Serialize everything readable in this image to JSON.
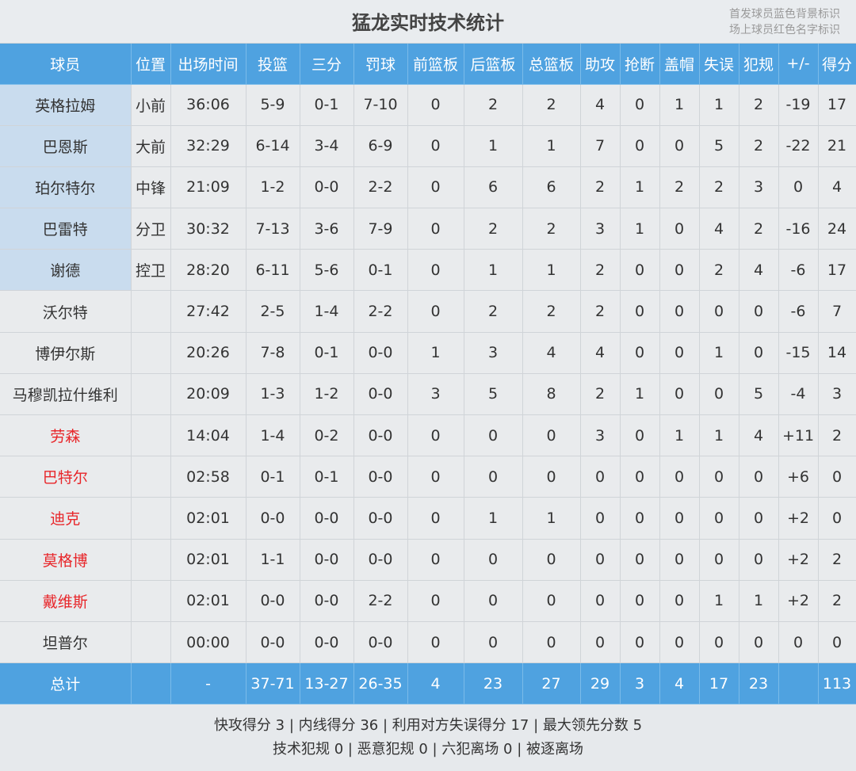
{
  "title": "猛龙实时技术统计",
  "legend": [
    "首发球员蓝色背景标识",
    "场上球员红色名字标识"
  ],
  "colors": {
    "header": "#4fa2e0",
    "starter_bg": "#c9dcee",
    "on_court_text": "#e8262a"
  },
  "columns": [
    "球员",
    "位置",
    "出场时间",
    "投篮",
    "三分",
    "罚球",
    "前篮板",
    "后篮板",
    "总篮板",
    "助攻",
    "抢断",
    "盖帽",
    "失误",
    "犯规",
    "+/-",
    "得分"
  ],
  "rows": [
    {
      "starter": true,
      "on_court": false,
      "cells": [
        "英格拉姆",
        "小前",
        "36:06",
        "5-9",
        "0-1",
        "7-10",
        "0",
        "2",
        "2",
        "4",
        "0",
        "1",
        "1",
        "2",
        "-19",
        "17"
      ]
    },
    {
      "starter": true,
      "on_court": false,
      "cells": [
        "巴恩斯",
        "大前",
        "32:29",
        "6-14",
        "3-4",
        "6-9",
        "0",
        "1",
        "1",
        "7",
        "0",
        "0",
        "5",
        "2",
        "-22",
        "21"
      ]
    },
    {
      "starter": true,
      "on_court": false,
      "cells": [
        "珀尔特尔",
        "中锋",
        "21:09",
        "1-2",
        "0-0",
        "2-2",
        "0",
        "6",
        "6",
        "2",
        "1",
        "2",
        "2",
        "3",
        "0",
        "4"
      ]
    },
    {
      "starter": true,
      "on_court": false,
      "cells": [
        "巴雷特",
        "分卫",
        "30:32",
        "7-13",
        "3-6",
        "7-9",
        "0",
        "2",
        "2",
        "3",
        "1",
        "0",
        "4",
        "2",
        "-16",
        "24"
      ]
    },
    {
      "starter": true,
      "on_court": false,
      "cells": [
        "谢德",
        "控卫",
        "28:20",
        "6-11",
        "5-6",
        "0-1",
        "0",
        "1",
        "1",
        "2",
        "0",
        "0",
        "2",
        "4",
        "-6",
        "17"
      ]
    },
    {
      "starter": false,
      "on_court": false,
      "cells": [
        "沃尔特",
        "",
        "27:42",
        "2-5",
        "1-4",
        "2-2",
        "0",
        "2",
        "2",
        "2",
        "0",
        "0",
        "0",
        "0",
        "-6",
        "7"
      ]
    },
    {
      "starter": false,
      "on_court": false,
      "cells": [
        "博伊尔斯",
        "",
        "20:26",
        "7-8",
        "0-1",
        "0-0",
        "1",
        "3",
        "4",
        "4",
        "0",
        "0",
        "1",
        "0",
        "-15",
        "14"
      ]
    },
    {
      "starter": false,
      "on_court": false,
      "cells": [
        "马穆凯拉什维利",
        "",
        "20:09",
        "1-3",
        "1-2",
        "0-0",
        "3",
        "5",
        "8",
        "2",
        "1",
        "0",
        "0",
        "5",
        "-4",
        "3"
      ]
    },
    {
      "starter": false,
      "on_court": true,
      "cells": [
        "劳森",
        "",
        "14:04",
        "1-4",
        "0-2",
        "0-0",
        "0",
        "0",
        "0",
        "3",
        "0",
        "1",
        "1",
        "4",
        "+11",
        "2"
      ]
    },
    {
      "starter": false,
      "on_court": true,
      "cells": [
        "巴特尔",
        "",
        "02:58",
        "0-1",
        "0-1",
        "0-0",
        "0",
        "0",
        "0",
        "0",
        "0",
        "0",
        "0",
        "0",
        "+6",
        "0"
      ]
    },
    {
      "starter": false,
      "on_court": true,
      "cells": [
        "迪克",
        "",
        "02:01",
        "0-0",
        "0-0",
        "0-0",
        "0",
        "1",
        "1",
        "0",
        "0",
        "0",
        "0",
        "0",
        "+2",
        "0"
      ]
    },
    {
      "starter": false,
      "on_court": true,
      "cells": [
        "莫格博",
        "",
        "02:01",
        "1-1",
        "0-0",
        "0-0",
        "0",
        "0",
        "0",
        "0",
        "0",
        "0",
        "0",
        "0",
        "+2",
        "2"
      ]
    },
    {
      "starter": false,
      "on_court": true,
      "cells": [
        "戴维斯",
        "",
        "02:01",
        "0-0",
        "0-0",
        "2-2",
        "0",
        "0",
        "0",
        "0",
        "0",
        "0",
        "1",
        "1",
        "+2",
        "2"
      ]
    },
    {
      "starter": false,
      "on_court": false,
      "cells": [
        "坦普尔",
        "",
        "00:00",
        "0-0",
        "0-0",
        "0-0",
        "0",
        "0",
        "0",
        "0",
        "0",
        "0",
        "0",
        "0",
        "0",
        "0"
      ]
    }
  ],
  "total": [
    "总计",
    "",
    "-",
    "37-71",
    "13-27",
    "26-35",
    "4",
    "23",
    "27",
    "29",
    "3",
    "4",
    "17",
    "23",
    "",
    "113"
  ],
  "footer": [
    "快攻得分 3 | 内线得分 36 | 利用对方失误得分 17 | 最大领先分数 5",
    "技术犯规 0 | 恶意犯规 0 | 六犯离场 0 | 被逐离场"
  ]
}
